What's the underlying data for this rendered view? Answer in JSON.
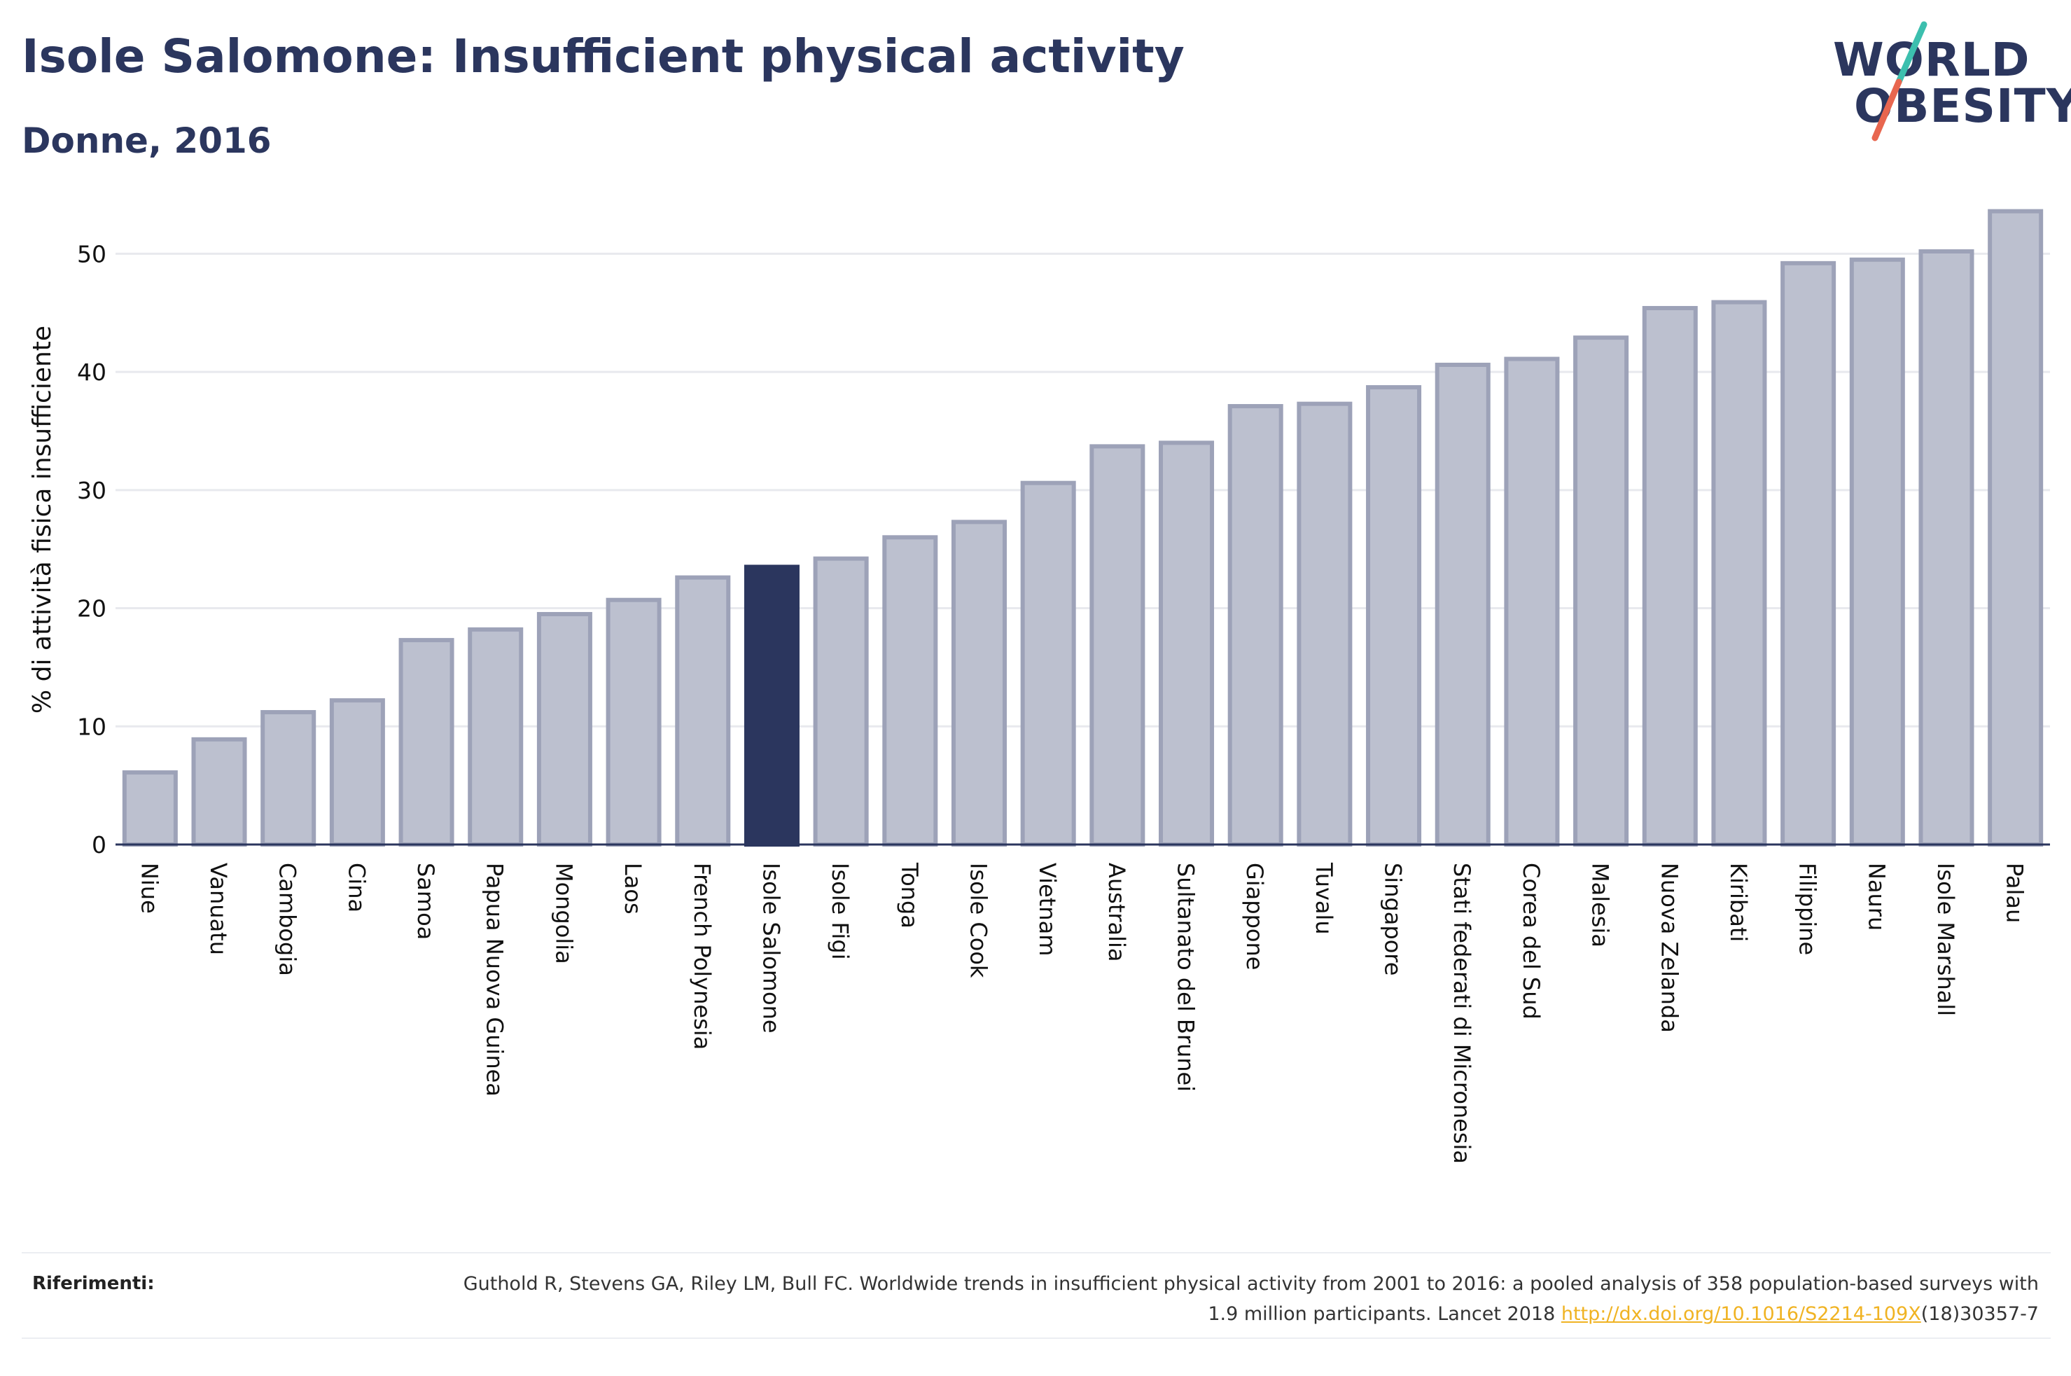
{
  "title": "Isole Salomone: Insufficient physical activity",
  "subtitle": "Donne, 2016",
  "logo": {
    "line1": "WORLD",
    "line2": "OBESITY",
    "slash_colors": [
      "#3cbfae",
      "#e8664f"
    ]
  },
  "colors": {
    "bar": "#bcc0cf",
    "bar_border": "#9da2b8",
    "highlight": "#2b365e",
    "grid": "#e8e9ee",
    "axis": "#2b365e"
  },
  "chart_data": {
    "type": "bar",
    "ylabel": "% di attività fisica insufficiente",
    "xlabel": "",
    "ylim": [
      0,
      55
    ],
    "yticks": [
      0,
      10,
      20,
      30,
      40,
      50
    ],
    "grid": true,
    "highlight": "Isole Salomone",
    "categories": [
      "Niue",
      "Vanuatu",
      "Cambogia",
      "Cina",
      "Samoa",
      "Papua Nuova Guinea",
      "Mongolia",
      "Laos",
      "French Polynesia",
      "Isole Salomone",
      "Isole Figi",
      "Tonga",
      "Isole Cook",
      "Vietnam",
      "Australia",
      "Sultanato del Brunei",
      "Giappone",
      "Tuvalu",
      "Singapore",
      "Stati federati di Micronesia",
      "Corea del Sud",
      "Malesia",
      "Nuova Zelanda",
      "Kiribati",
      "Filippine",
      "Nauru",
      "Isole Marshall",
      "Palau"
    ],
    "values": [
      6.1,
      8.9,
      11.2,
      12.2,
      17.3,
      18.2,
      19.5,
      20.7,
      22.6,
      23.5,
      24.2,
      26.0,
      27.3,
      30.6,
      33.7,
      34.0,
      37.1,
      37.3,
      38.7,
      40.6,
      41.1,
      42.9,
      45.4,
      45.9,
      49.2,
      49.5,
      50.2,
      53.6
    ]
  },
  "references": {
    "label": "Riferimenti:",
    "text_before_link": "Guthold R, Stevens GA, Riley LM, Bull FC. Worldwide trends in insufficient physical activity from 2001 to 2016: a pooled analysis of 358 population-based surveys with 1.9 million participants. Lancet 2018 ",
    "link_text": "http://dx.doi.org/10.1016/S2214-109X",
    "text_after_link": "(18)30357-7"
  }
}
